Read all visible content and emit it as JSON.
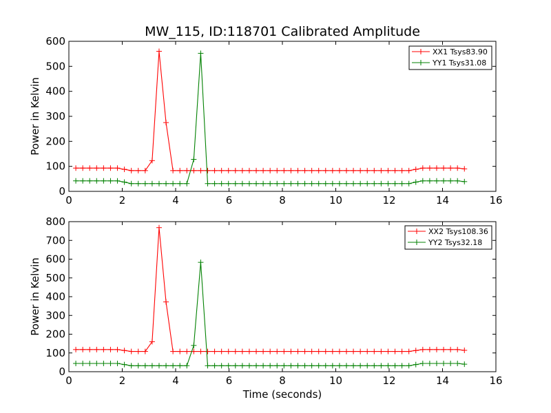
{
  "figure": {
    "title": "MW_115, ID:118701 Calibrated Amplitude"
  },
  "colors": {
    "xx": "#ff0000",
    "yy": "#008000",
    "axes": "#000000",
    "background": "#ffffff"
  },
  "chart_data": [
    {
      "type": "line",
      "title": "MW_115, ID:118701 Calibrated Amplitude",
      "xlabel": "",
      "ylabel": "Power in Kelvin",
      "xlim": [
        0,
        16
      ],
      "ylim": [
        0,
        600
      ],
      "xticks": [
        "0",
        "2",
        "4",
        "6",
        "8",
        "10",
        "12",
        "14",
        "16"
      ],
      "yticks": [
        "0",
        "100",
        "200",
        "300",
        "400",
        "500",
        "600"
      ],
      "grid": false,
      "legend_position": "top-right",
      "x": [
        0.26,
        0.52,
        0.78,
        1.04,
        1.3,
        1.56,
        1.82,
        2.08,
        2.34,
        2.6,
        2.86,
        3.12,
        3.38,
        3.64,
        3.9,
        4.16,
        4.42,
        4.68,
        4.94,
        5.2,
        5.46,
        5.72,
        5.98,
        6.24,
        6.5,
        6.76,
        7.02,
        7.28,
        7.54,
        7.8,
        8.06,
        8.32,
        8.58,
        8.84,
        9.1,
        9.36,
        9.62,
        9.88,
        10.14,
        10.4,
        10.66,
        10.92,
        11.18,
        11.44,
        11.7,
        11.96,
        12.22,
        12.48,
        12.74,
        13.0,
        13.26,
        13.52,
        13.78,
        14.04,
        14.3,
        14.56,
        14.82
      ],
      "series": [
        {
          "name": "XX1 Tsys83.90",
          "color": "#ff0000",
          "values": [
            93,
            93,
            93,
            93,
            93,
            93,
            93,
            88,
            83,
            83,
            83,
            123,
            560,
            275,
            83,
            83,
            83,
            83,
            83,
            83,
            83,
            83,
            83,
            83,
            83,
            83,
            83,
            83,
            83,
            83,
            83,
            83,
            83,
            83,
            83,
            83,
            83,
            83,
            83,
            83,
            83,
            83,
            83,
            83,
            83,
            83,
            83,
            83,
            83,
            88,
            93,
            93,
            93,
            93,
            93,
            93,
            90
          ]
        },
        {
          "name": "YY1 Tsys31.08",
          "color": "#008000",
          "values": [
            42,
            42,
            42,
            42,
            42,
            42,
            42,
            37,
            31,
            31,
            31,
            31,
            31,
            31,
            31,
            31,
            31,
            128,
            552,
            31,
            31,
            31,
            31,
            31,
            31,
            31,
            31,
            31,
            31,
            31,
            31,
            31,
            31,
            31,
            31,
            31,
            31,
            31,
            31,
            31,
            31,
            31,
            31,
            31,
            31,
            31,
            31,
            31,
            31,
            37,
            42,
            42,
            42,
            42,
            42,
            42,
            39
          ]
        }
      ]
    },
    {
      "type": "line",
      "title": "",
      "xlabel": "Time (seconds)",
      "ylabel": "Power in Kelvin",
      "xlim": [
        0,
        16
      ],
      "ylim": [
        0,
        800
      ],
      "xticks": [
        "0",
        "2",
        "4",
        "6",
        "8",
        "10",
        "12",
        "14",
        "16"
      ],
      "yticks": [
        "0",
        "100",
        "200",
        "300",
        "400",
        "500",
        "600",
        "700",
        "800"
      ],
      "grid": false,
      "legend_position": "top-right",
      "x": [
        0.26,
        0.52,
        0.78,
        1.04,
        1.3,
        1.56,
        1.82,
        2.08,
        2.34,
        2.6,
        2.86,
        3.12,
        3.38,
        3.64,
        3.9,
        4.16,
        4.42,
        4.68,
        4.94,
        5.2,
        5.46,
        5.72,
        5.98,
        6.24,
        6.5,
        6.76,
        7.02,
        7.28,
        7.54,
        7.8,
        8.06,
        8.32,
        8.58,
        8.84,
        9.1,
        9.36,
        9.62,
        9.88,
        10.14,
        10.4,
        10.66,
        10.92,
        11.18,
        11.44,
        11.7,
        11.96,
        12.22,
        12.48,
        12.74,
        13.0,
        13.26,
        13.52,
        13.78,
        14.04,
        14.3,
        14.56,
        14.82
      ],
      "series": [
        {
          "name": "XX2 Tsys108.36",
          "color": "#ff0000",
          "values": [
            118,
            118,
            118,
            118,
            118,
            118,
            118,
            113,
            108,
            108,
            108,
            160,
            768,
            372,
            108,
            108,
            108,
            108,
            108,
            108,
            108,
            108,
            108,
            108,
            108,
            108,
            108,
            108,
            108,
            108,
            108,
            108,
            108,
            108,
            108,
            108,
            108,
            108,
            108,
            108,
            108,
            108,
            108,
            108,
            108,
            108,
            108,
            108,
            108,
            113,
            118,
            118,
            118,
            118,
            118,
            118,
            114
          ]
        },
        {
          "name": "YY2 Tsys32.18",
          "color": "#008000",
          "values": [
            44,
            44,
            44,
            44,
            44,
            44,
            44,
            38,
            32,
            32,
            32,
            32,
            32,
            32,
            32,
            32,
            32,
            140,
            583,
            32,
            32,
            32,
            32,
            32,
            32,
            32,
            32,
            32,
            32,
            32,
            32,
            32,
            32,
            32,
            32,
            32,
            32,
            32,
            32,
            32,
            32,
            32,
            32,
            32,
            32,
            32,
            32,
            32,
            32,
            38,
            44,
            44,
            44,
            44,
            44,
            44,
            40
          ]
        }
      ]
    }
  ]
}
